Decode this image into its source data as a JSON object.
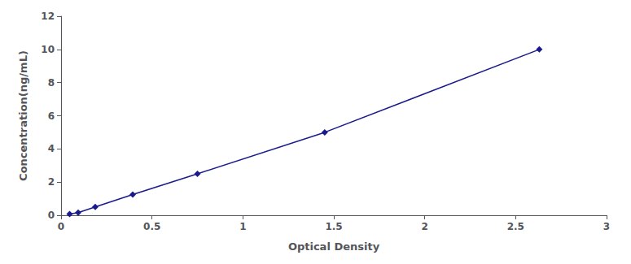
{
  "chart_data": {
    "type": "line",
    "x": [
      0.047,
      0.094,
      0.188,
      0.394,
      0.75,
      1.45,
      2.63
    ],
    "values": [
      0.078,
      0.156,
      0.5,
      1.25,
      2.5,
      5.0,
      10.0
    ],
    "color": "#1a1a8c",
    "marker": "diamond",
    "xlabel": "Optical Density",
    "ylabel": "Concentration(ng/mL)",
    "xlim": [
      0,
      3
    ],
    "ylim": [
      0,
      12
    ],
    "xticks": [
      0,
      0.5,
      1,
      1.5,
      2,
      2.5,
      3
    ],
    "yticks": [
      0,
      2,
      4,
      6,
      8,
      10,
      12
    ],
    "grid": false
  }
}
